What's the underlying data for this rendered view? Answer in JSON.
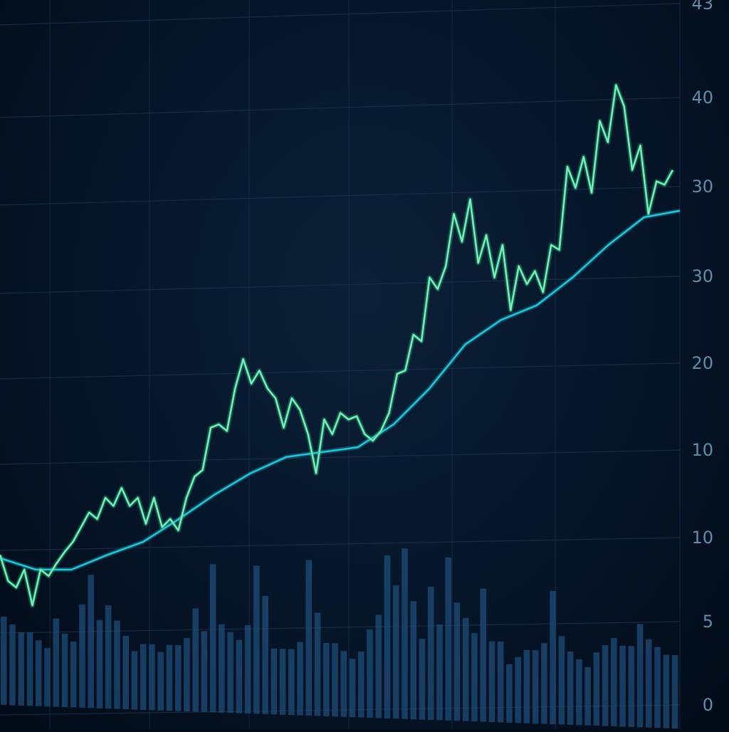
{
  "chart_data": {
    "type": "line",
    "title": "",
    "xlabel": "",
    "ylabel": "",
    "ylim": [
      0,
      43
    ],
    "grid": true,
    "y_tick_labels": [
      "43",
      "40",
      "30",
      "30",
      "20",
      "10",
      "10",
      "5",
      "0"
    ],
    "series": [
      {
        "role": "price",
        "color": "#3ddc97",
        "values": [
          9.2,
          7.6,
          7.2,
          8.3,
          6.1,
          8.3,
          7.9,
          8.7,
          9.4,
          10.0,
          10.9,
          11.8,
          11.4,
          12.7,
          12.2,
          13.3,
          12.2,
          12.7,
          11.1,
          12.7,
          10.9,
          11.4,
          10.7,
          12.7,
          14.0,
          14.4,
          17.0,
          17.2,
          16.8,
          19.4,
          21.2,
          19.7,
          20.5,
          19.4,
          18.8,
          17.0,
          18.8,
          18.1,
          16.6,
          14.2,
          17.5,
          16.6,
          17.9,
          17.5,
          17.7,
          16.6,
          16.2,
          16.8,
          17.9,
          20.3,
          20.5,
          22.7,
          22.3,
          26.2,
          25.5,
          26.9,
          30.1,
          28.4,
          31.0,
          27.1,
          28.8,
          26.2,
          28.2,
          24.2,
          26.9,
          25.8,
          26.6,
          25.3,
          28.2,
          27.9,
          33.0,
          31.7,
          33.6,
          31.4,
          35.8,
          34.5,
          38.0,
          36.7,
          32.8,
          34.3,
          30.1,
          32.1,
          31.9,
          32.8
        ]
      },
      {
        "role": "moving-average",
        "color": "#1fc8d8",
        "values": [
          9.0,
          8.3,
          8.3,
          9.2,
          10.0,
          11.4,
          12.9,
          14.2,
          15.2,
          15.5,
          15.8,
          17.2,
          19.4,
          22.1,
          23.6,
          24.5,
          26.2,
          28.2,
          29.9,
          30.3
        ]
      }
    ],
    "volume": {
      "type": "bar",
      "color": "#1d4e78",
      "values": [
        4,
        3.5,
        3,
        3,
        2.5,
        2,
        4,
        3,
        2.5,
        5,
        7,
        4,
        5,
        4,
        3,
        2,
        2.5,
        2.5,
        2,
        2.5,
        2.5,
        3,
        5,
        3.5,
        8,
        4,
        3.5,
        3,
        4,
        8,
        6,
        2.5,
        2.5,
        2.5,
        3,
        8.5,
        5,
        3,
        3,
        2.5,
        2,
        2.5,
        4,
        5,
        9,
        7,
        9.5,
        6,
        3.5,
        7,
        4.5,
        9,
        6,
        5,
        4,
        7,
        3.5,
        3.5,
        2,
        2.5,
        3,
        3,
        3.5,
        7,
        4,
        3,
        2.5,
        2,
        3,
        3.5,
        4,
        3.5,
        3.5,
        5,
        4,
        3.5,
        3,
        3
      ]
    }
  }
}
